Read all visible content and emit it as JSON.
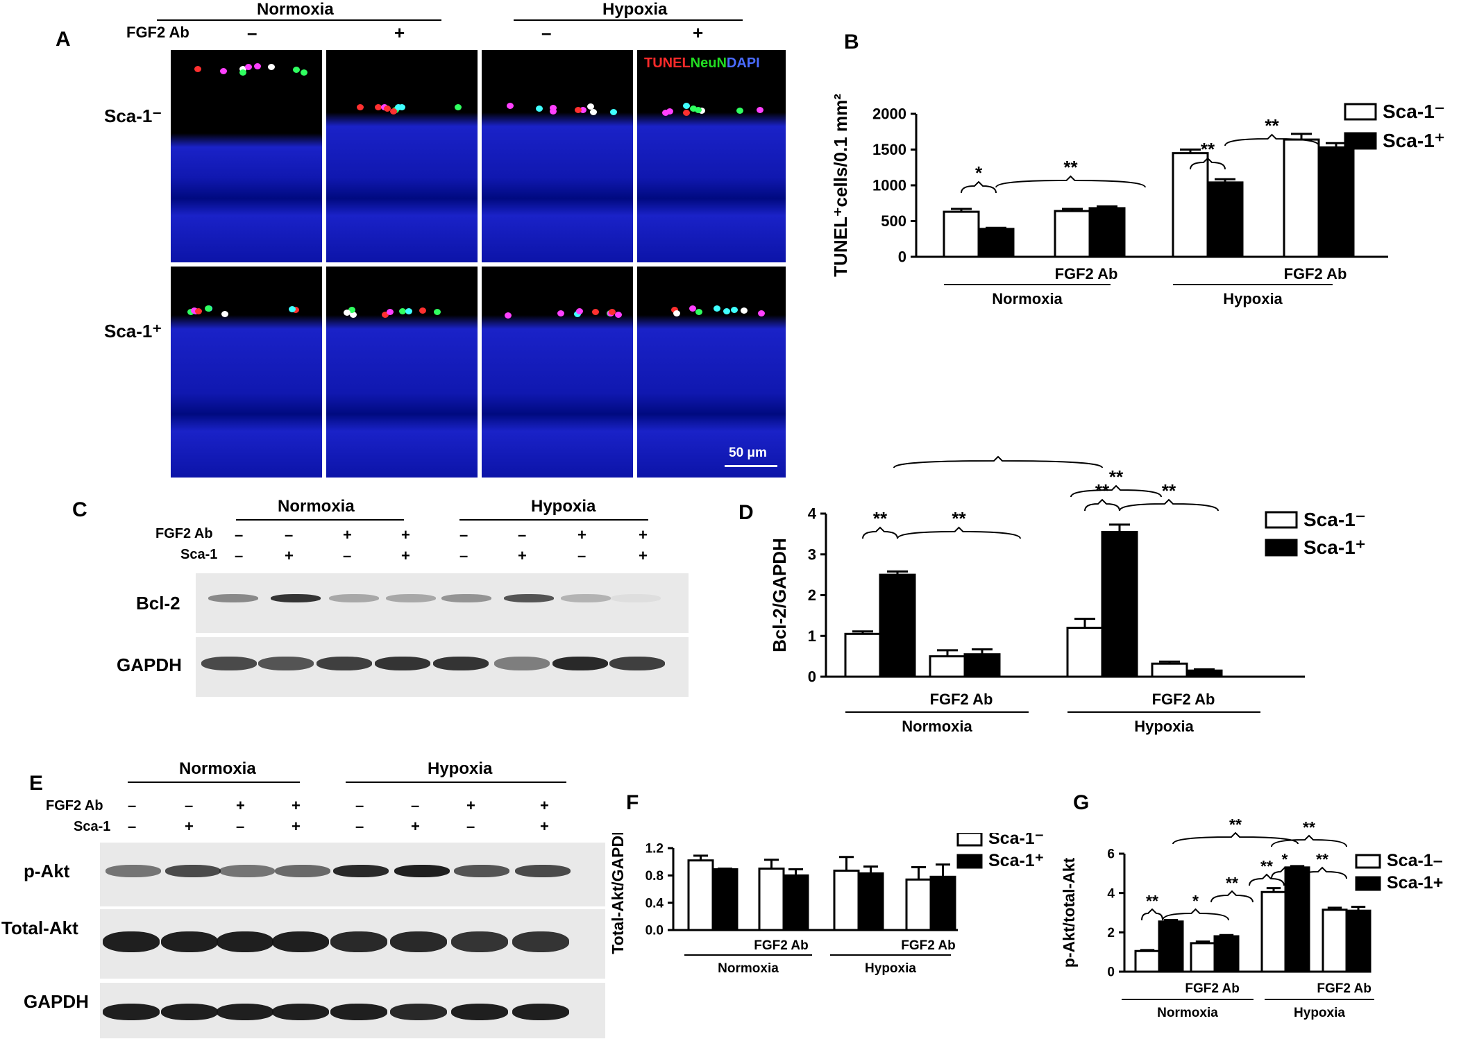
{
  "panel_letters": {
    "A": "A",
    "B": "B",
    "C": "C",
    "D": "D",
    "E": "E",
    "F": "F",
    "G": "G"
  },
  "panelA": {
    "normoxia": "Normoxia",
    "hypoxia": "Hypoxia",
    "fgf2_label": "FGF2 Ab",
    "minus": "–",
    "plus": "+",
    "row1_label": "Sca-1⁻",
    "row2_label": "Sca-1⁺",
    "legend_tunel": "TUNEL",
    "legend_neun": "NeuN",
    "legend_dapi": "DAPI",
    "scale_bar": "50 μm"
  },
  "panelC": {
    "normoxia": "Normoxia",
    "hypoxia": "Hypoxia",
    "fgf2_label": "FGF2 Ab",
    "sca_label": "Sca-1",
    "fgf2_signs": [
      "–",
      "–",
      "+",
      "+",
      "–",
      "–",
      "+",
      "+"
    ],
    "sca_signs": [
      "–",
      "+",
      "–",
      "+",
      "–",
      "+",
      "–",
      "+"
    ],
    "band1": "Bcl-2",
    "band2": "GAPDH"
  },
  "panelE": {
    "normoxia": "Normoxia",
    "hypoxia": "Hypoxia",
    "fgf2_label": "FGF2 Ab",
    "sca_label": "Sca-1",
    "fgf2_signs": [
      "–",
      "–",
      "+",
      "+",
      "–",
      "–",
      "+",
      "+"
    ],
    "sca_signs": [
      "–",
      "+",
      "–",
      "+",
      "–",
      "+",
      "–",
      "+"
    ],
    "band1": "p-Akt",
    "band2": "Total-Akt",
    "band3": "GAPDH"
  },
  "chart_data": [
    {
      "id": "B",
      "type": "bar",
      "ylabel": "TUNEL⁺cells/0.1 mm²",
      "ylim": [
        0,
        2000
      ],
      "yticks": [
        0,
        500,
        1000,
        1500,
        2000
      ],
      "group_labels": [
        "Normoxia",
        "Hypoxia"
      ],
      "treatment_label": "FGF2 Ab",
      "series": [
        {
          "name": "Sca-1⁻",
          "values": [
            630,
            640,
            1450,
            1640
          ],
          "errors": [
            40,
            30,
            50,
            80
          ]
        },
        {
          "name": "Sca-1⁺",
          "values": [
            390,
            680,
            1040,
            1530
          ],
          "errors": [
            15,
            25,
            45,
            60
          ]
        }
      ],
      "significance": [
        "*",
        "**",
        "**",
        "**"
      ]
    },
    {
      "id": "D",
      "type": "bar",
      "ylabel": "Bcl-2/GAPDH",
      "ylim": [
        0,
        4
      ],
      "yticks": [
        0,
        1,
        2,
        3,
        4
      ],
      "group_labels": [
        "Normoxia",
        "Hypoxia"
      ],
      "treatment_label": "FGF2 Ab",
      "series": [
        {
          "name": "Sca-1⁻",
          "values": [
            1.05,
            0.5,
            1.2,
            0.32
          ],
          "errors": [
            0.06,
            0.15,
            0.22,
            0.05
          ]
        },
        {
          "name": "Sca-1⁺",
          "values": [
            2.5,
            0.55,
            3.55,
            0.15
          ],
          "errors": [
            0.08,
            0.12,
            0.18,
            0.03
          ]
        }
      ],
      "significance": [
        "**",
        "**",
        "**",
        "**",
        "**",
        "**"
      ]
    },
    {
      "id": "F",
      "type": "bar",
      "ylabel": "Total-Akt/GAPDH",
      "ylim": [
        0,
        1.2
      ],
      "yticks": [
        "0.0",
        "0.4",
        "0.8",
        "1.2"
      ],
      "group_labels": [
        "Normoxia",
        "Hypoxia"
      ],
      "treatment_label": "FGF2 Ab",
      "series": [
        {
          "name": "Sca-1⁻",
          "values": [
            1.02,
            0.9,
            0.87,
            0.74
          ],
          "errors": [
            0.07,
            0.13,
            0.2,
            0.18
          ]
        },
        {
          "name": "Sca-1⁺",
          "values": [
            0.89,
            0.8,
            0.83,
            0.78
          ],
          "errors": [
            0.01,
            0.09,
            0.1,
            0.18
          ]
        }
      ],
      "significance": []
    },
    {
      "id": "G",
      "type": "bar",
      "ylabel": "p-Akt/total-Akt",
      "ylim": [
        0,
        6
      ],
      "yticks": [
        0,
        2,
        4,
        6
      ],
      "group_labels": [
        "Normoxia",
        "Hypoxia"
      ],
      "treatment_label": "FGF2 Ab",
      "series": [
        {
          "name": "Sca-1–",
          "values": [
            1.05,
            1.45,
            4.05,
            3.15
          ],
          "errors": [
            0.05,
            0.08,
            0.2,
            0.1
          ]
        },
        {
          "name": "Sca-1+",
          "values": [
            2.55,
            1.8,
            5.3,
            3.1
          ],
          "errors": [
            0.08,
            0.06,
            0.07,
            0.2
          ]
        }
      ],
      "significance": [
        "**",
        "*",
        "**",
        "**",
        "*",
        "**",
        "**",
        "**"
      ]
    }
  ]
}
